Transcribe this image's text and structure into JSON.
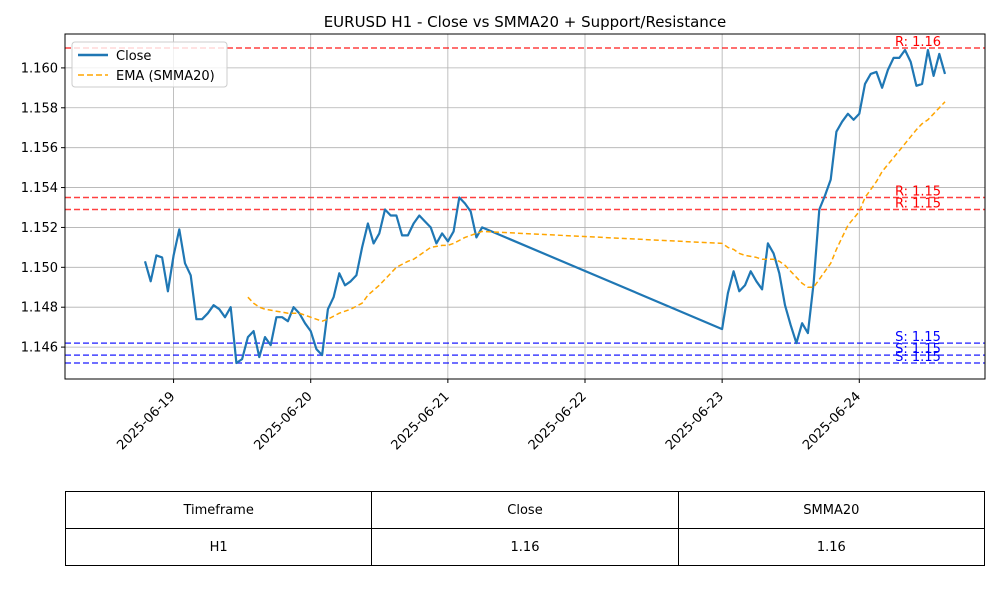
{
  "chart_data": {
    "type": "line",
    "title": "EURUSD H1 - Close vs SMMA20 + Support/Resistance",
    "xlabel": "",
    "ylabel": "",
    "x_ticks": [
      "2025-06-19",
      "2025-06-20",
      "2025-06-21",
      "2025-06-22",
      "2025-06-23",
      "2025-06-24"
    ],
    "y_ticks": [
      "1.146",
      "1.148",
      "1.150",
      "1.152",
      "1.154",
      "1.156",
      "1.158",
      "1.160"
    ],
    "ylim": [
      1.1444,
      1.1617
    ],
    "xlim": [
      "2025-06-18 05:00",
      "2025-06-24 22:00"
    ],
    "grid": true,
    "legend_position": "top-left",
    "series": [
      {
        "name": "Close",
        "color": "#1f77b4",
        "style": "solid",
        "points": [
          [
            "2025-06-18 19:00",
            1.1503
          ],
          [
            "2025-06-18 20:00",
            1.1493
          ],
          [
            "2025-06-18 21:00",
            1.1506
          ],
          [
            "2025-06-18 22:00",
            1.1505
          ],
          [
            "2025-06-18 23:00",
            1.1488
          ],
          [
            "2025-06-19 00:00",
            1.1506
          ],
          [
            "2025-06-19 01:00",
            1.1519
          ],
          [
            "2025-06-19 02:00",
            1.1502
          ],
          [
            "2025-06-19 03:00",
            1.1496
          ],
          [
            "2025-06-19 04:00",
            1.1474
          ],
          [
            "2025-06-19 05:00",
            1.1474
          ],
          [
            "2025-06-19 06:00",
            1.1477
          ],
          [
            "2025-06-19 07:00",
            1.1481
          ],
          [
            "2025-06-19 08:00",
            1.1479
          ],
          [
            "2025-06-19 09:00",
            1.1475
          ],
          [
            "2025-06-19 10:00",
            1.148
          ],
          [
            "2025-06-19 11:00",
            1.1452
          ],
          [
            "2025-06-19 12:00",
            1.1454
          ],
          [
            "2025-06-19 13:00",
            1.1465
          ],
          [
            "2025-06-19 14:00",
            1.1468
          ],
          [
            "2025-06-19 15:00",
            1.1455
          ],
          [
            "2025-06-19 16:00",
            1.1465
          ],
          [
            "2025-06-19 17:00",
            1.1461
          ],
          [
            "2025-06-19 18:00",
            1.1475
          ],
          [
            "2025-06-19 19:00",
            1.1475
          ],
          [
            "2025-06-19 20:00",
            1.1473
          ],
          [
            "2025-06-19 21:00",
            1.148
          ],
          [
            "2025-06-19 22:00",
            1.1477
          ],
          [
            "2025-06-19 23:00",
            1.1472
          ],
          [
            "2025-06-20 00:00",
            1.1468
          ],
          [
            "2025-06-20 01:00",
            1.1459
          ],
          [
            "2025-06-20 02:00",
            1.1456
          ],
          [
            "2025-06-20 03:00",
            1.1479
          ],
          [
            "2025-06-20 04:00",
            1.1485
          ],
          [
            "2025-06-20 05:00",
            1.1497
          ],
          [
            "2025-06-20 06:00",
            1.1491
          ],
          [
            "2025-06-20 07:00",
            1.1493
          ],
          [
            "2025-06-20 08:00",
            1.1496
          ],
          [
            "2025-06-20 09:00",
            1.151
          ],
          [
            "2025-06-20 10:00",
            1.1522
          ],
          [
            "2025-06-20 11:00",
            1.1512
          ],
          [
            "2025-06-20 12:00",
            1.1517
          ],
          [
            "2025-06-20 13:00",
            1.1529
          ],
          [
            "2025-06-20 14:00",
            1.1526
          ],
          [
            "2025-06-20 15:00",
            1.1526
          ],
          [
            "2025-06-20 16:00",
            1.1516
          ],
          [
            "2025-06-20 17:00",
            1.1516
          ],
          [
            "2025-06-20 18:00",
            1.1522
          ],
          [
            "2025-06-20 19:00",
            1.1526
          ],
          [
            "2025-06-20 20:00",
            1.1523
          ],
          [
            "2025-06-20 21:00",
            1.152
          ],
          [
            "2025-06-20 22:00",
            1.1512
          ],
          [
            "2025-06-20 23:00",
            1.1517
          ],
          [
            "2025-06-21 00:00",
            1.1513
          ],
          [
            "2025-06-21 01:00",
            1.1518
          ],
          [
            "2025-06-21 02:00",
            1.1535
          ],
          [
            "2025-06-21 03:00",
            1.1532
          ],
          [
            "2025-06-21 04:00",
            1.1528
          ],
          [
            "2025-06-21 05:00",
            1.1515
          ],
          [
            "2025-06-21 06:00",
            1.152
          ],
          [
            "2025-06-23 00:00",
            1.1469
          ],
          [
            "2025-06-23 01:00",
            1.1487
          ],
          [
            "2025-06-23 02:00",
            1.1498
          ],
          [
            "2025-06-23 03:00",
            1.1488
          ],
          [
            "2025-06-23 04:00",
            1.1491
          ],
          [
            "2025-06-23 05:00",
            1.1498
          ],
          [
            "2025-06-23 06:00",
            1.1493
          ],
          [
            "2025-06-23 07:00",
            1.1489
          ],
          [
            "2025-06-23 08:00",
            1.1512
          ],
          [
            "2025-06-23 09:00",
            1.1507
          ],
          [
            "2025-06-23 10:00",
            1.1497
          ],
          [
            "2025-06-23 11:00",
            1.1481
          ],
          [
            "2025-06-23 12:00",
            1.1471
          ],
          [
            "2025-06-23 13:00",
            1.1462
          ],
          [
            "2025-06-23 14:00",
            1.1472
          ],
          [
            "2025-06-23 15:00",
            1.1467
          ],
          [
            "2025-06-23 16:00",
            1.1492
          ],
          [
            "2025-06-23 17:00",
            1.1529
          ],
          [
            "2025-06-23 18:00",
            1.1536
          ],
          [
            "2025-06-23 19:00",
            1.1544
          ],
          [
            "2025-06-23 20:00",
            1.1568
          ],
          [
            "2025-06-23 21:00",
            1.1573
          ],
          [
            "2025-06-23 22:00",
            1.1577
          ],
          [
            "2025-06-23 23:00",
            1.1574
          ],
          [
            "2025-06-24 00:00",
            1.1577
          ],
          [
            "2025-06-24 01:00",
            1.1592
          ],
          [
            "2025-06-24 02:00",
            1.1597
          ],
          [
            "2025-06-24 03:00",
            1.1598
          ],
          [
            "2025-06-24 04:00",
            1.159
          ],
          [
            "2025-06-24 05:00",
            1.1599
          ],
          [
            "2025-06-24 06:00",
            1.1605
          ],
          [
            "2025-06-24 07:00",
            1.1605
          ],
          [
            "2025-06-24 08:00",
            1.1609
          ],
          [
            "2025-06-24 09:00",
            1.1603
          ],
          [
            "2025-06-24 10:00",
            1.1591
          ],
          [
            "2025-06-24 11:00",
            1.1592
          ],
          [
            "2025-06-24 12:00",
            1.1609
          ],
          [
            "2025-06-24 13:00",
            1.1596
          ],
          [
            "2025-06-24 14:00",
            1.1607
          ],
          [
            "2025-06-24 15:00",
            1.1597
          ]
        ]
      },
      {
        "name": "EMA (SMMA20)",
        "color": "#ffa500",
        "style": "dashed",
        "points": [
          [
            "2025-06-19 13:00",
            1.1485
          ],
          [
            "2025-06-19 14:00",
            1.1482
          ],
          [
            "2025-06-19 15:00",
            1.148
          ],
          [
            "2025-06-19 16:00",
            1.1479
          ],
          [
            "2025-06-19 18:00",
            1.1478
          ],
          [
            "2025-06-19 20:00",
            1.1477
          ],
          [
            "2025-06-19 22:00",
            1.1477
          ],
          [
            "2025-06-20 00:00",
            1.1475
          ],
          [
            "2025-06-20 02:00",
            1.1473
          ],
          [
            "2025-06-20 03:00",
            1.1474
          ],
          [
            "2025-06-20 05:00",
            1.1477
          ],
          [
            "2025-06-20 07:00",
            1.1479
          ],
          [
            "2025-06-20 09:00",
            1.1482
          ],
          [
            "2025-06-20 10:00",
            1.1486
          ],
          [
            "2025-06-20 12:00",
            1.1491
          ],
          [
            "2025-06-20 14:00",
            1.1497
          ],
          [
            "2025-06-20 15:00",
            1.15
          ],
          [
            "2025-06-20 17:00",
            1.1503
          ],
          [
            "2025-06-20 18:00",
            1.1504
          ],
          [
            "2025-06-20 20:00",
            1.1508
          ],
          [
            "2025-06-20 21:00",
            1.151
          ],
          [
            "2025-06-20 23:00",
            1.1511
          ],
          [
            "2025-06-21 00:00",
            1.1511
          ],
          [
            "2025-06-21 01:00",
            1.1512
          ],
          [
            "2025-06-21 03:00",
            1.1515
          ],
          [
            "2025-06-21 05:00",
            1.1517
          ],
          [
            "2025-06-21 06:00",
            1.1518
          ],
          [
            "2025-06-23 00:00",
            1.1512
          ],
          [
            "2025-06-23 01:00",
            1.151
          ],
          [
            "2025-06-23 02:00",
            1.1509
          ],
          [
            "2025-06-23 03:00",
            1.1507
          ],
          [
            "2025-06-23 04:00",
            1.1506
          ],
          [
            "2025-06-23 06:00",
            1.1505
          ],
          [
            "2025-06-23 07:00",
            1.1504
          ],
          [
            "2025-06-23 08:00",
            1.1504
          ],
          [
            "2025-06-23 09:00",
            1.1504
          ],
          [
            "2025-06-23 10:00",
            1.1503
          ],
          [
            "2025-06-23 11:00",
            1.1501
          ],
          [
            "2025-06-23 12:00",
            1.1498
          ],
          [
            "2025-06-23 13:00",
            1.1495
          ],
          [
            "2025-06-23 14:00",
            1.1492
          ],
          [
            "2025-06-23 15:00",
            1.149
          ],
          [
            "2025-06-23 16:00",
            1.149
          ],
          [
            "2025-06-23 17:00",
            1.1494
          ],
          [
            "2025-06-23 18:00",
            1.1498
          ],
          [
            "2025-06-23 19:00",
            1.1502
          ],
          [
            "2025-06-23 20:00",
            1.1509
          ],
          [
            "2025-06-23 21:00",
            1.1515
          ],
          [
            "2025-06-23 22:00",
            1.1521
          ],
          [
            "2025-06-24 00:00",
            1.1528
          ],
          [
            "2025-06-24 01:00",
            1.1535
          ],
          [
            "2025-06-24 03:00",
            1.1543
          ],
          [
            "2025-06-24 04:00",
            1.1548
          ],
          [
            "2025-06-24 06:00",
            1.1555
          ],
          [
            "2025-06-24 08:00",
            1.1562
          ],
          [
            "2025-06-24 10:00",
            1.1569
          ],
          [
            "2025-06-24 11:00",
            1.1572
          ],
          [
            "2025-06-24 12:00",
            1.1574
          ],
          [
            "2025-06-24 13:00",
            1.1577
          ],
          [
            "2025-06-24 14:00",
            1.158
          ],
          [
            "2025-06-24 15:00",
            1.1583
          ]
        ]
      }
    ],
    "resistance_lines": [
      {
        "value": 1.161,
        "label": "R: 1.16"
      },
      {
        "value": 1.1535,
        "label": "R: 1.15"
      },
      {
        "value": 1.1529,
        "label": "R: 1.15"
      }
    ],
    "support_lines": [
      {
        "value": 1.1462,
        "label": "S: 1.15"
      },
      {
        "value": 1.1456,
        "label": "S: 1.15"
      },
      {
        "value": 1.1452,
        "label": "S: 1.15"
      }
    ],
    "resistance_color": "#ff0000",
    "support_color": "#0000ff",
    "table": {
      "headers": [
        "Timeframe",
        "Close",
        "SMMA20"
      ],
      "rows": [
        [
          "H1",
          "1.16",
          "1.16"
        ]
      ]
    }
  }
}
